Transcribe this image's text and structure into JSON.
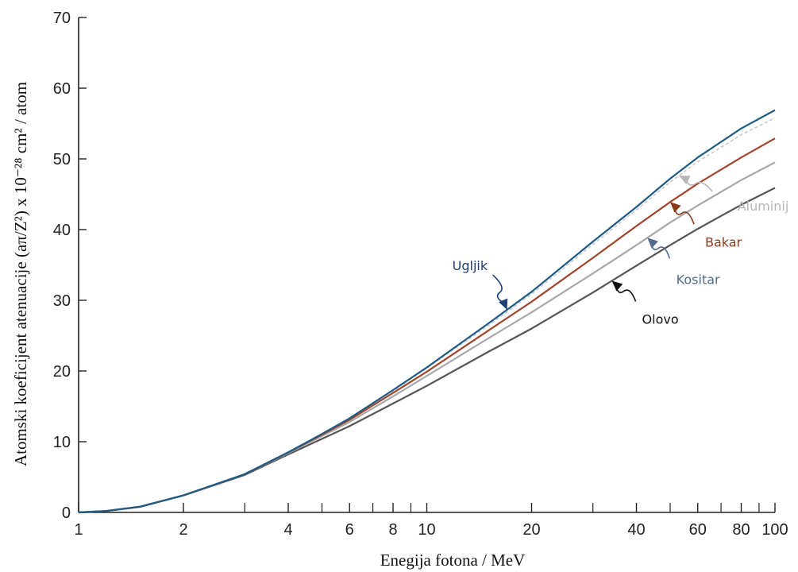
{
  "chart_data": {
    "type": "line",
    "xscale": "log",
    "xlim": [
      1,
      100
    ],
    "ylim": [
      0,
      70
    ],
    "xlabel": "Enegija fotona / MeV",
    "ylabel": "Atomski koeficijent atenuacije (aπ/Z²) x 10⁻²⁸ cm² / atom",
    "x_ticks": [
      1,
      2,
      4,
      6,
      8,
      10,
      20,
      40,
      60,
      80,
      100
    ],
    "x_tick_labels": [
      "1",
      "2",
      "4",
      "6",
      "8",
      "10",
      "20",
      "40",
      "60",
      "80",
      "100"
    ],
    "x_minor_ticks": [
      3,
      5,
      7,
      9,
      30,
      50,
      70,
      90
    ],
    "y_ticks": [
      0,
      10,
      20,
      30,
      40,
      50,
      60,
      70
    ],
    "y_tick_labels": [
      "0",
      "10",
      "20",
      "30",
      "40",
      "50",
      "60",
      "70"
    ],
    "grid": false,
    "series": [
      {
        "name": "Ugljik",
        "color": "#1d5b86",
        "x": [
          1,
          1.2,
          1.5,
          2,
          3,
          4,
          5,
          6,
          8,
          10,
          15,
          20,
          30,
          40,
          50,
          60,
          80,
          100
        ],
        "y": [
          0,
          0.2,
          0.8,
          2.4,
          5.4,
          8.5,
          11.1,
          13.3,
          17.3,
          20.5,
          26.7,
          31.2,
          38.3,
          43.2,
          47.2,
          50.2,
          54.3,
          56.9
        ]
      },
      {
        "name": "Aluminij",
        "color": "#c8c8c8",
        "dashed": true,
        "x": [
          1,
          1.2,
          1.5,
          2,
          3,
          4,
          5,
          6,
          8,
          10,
          15,
          20,
          30,
          40,
          50,
          60,
          80,
          100
        ],
        "y": [
          0,
          0.2,
          0.8,
          2.4,
          5.4,
          8.5,
          11.1,
          13.3,
          17.2,
          20.4,
          26.4,
          30.9,
          37.9,
          42.8,
          46.7,
          49.6,
          53.4,
          55.8
        ]
      },
      {
        "name": "Bakar",
        "color": "#a0452a",
        "x": [
          1,
          1.2,
          1.5,
          2,
          3,
          4,
          5,
          6,
          8,
          10,
          15,
          20,
          30,
          40,
          50,
          60,
          80,
          100
        ],
        "y": [
          0,
          0.2,
          0.8,
          2.4,
          5.4,
          8.5,
          11.0,
          13.1,
          16.9,
          19.9,
          25.7,
          29.8,
          36.0,
          40.5,
          43.9,
          46.5,
          50.2,
          52.9
        ]
      },
      {
        "name": "Kositar",
        "color": "#a8a8a8",
        "x": [
          1,
          1.2,
          1.5,
          2,
          3,
          4,
          5,
          6,
          8,
          10,
          15,
          20,
          30,
          40,
          50,
          60,
          80,
          100
        ],
        "y": [
          0,
          0.2,
          0.8,
          2.4,
          5.4,
          8.4,
          10.8,
          12.8,
          16.4,
          19.3,
          24.6,
          28.3,
          33.8,
          37.8,
          41.0,
          43.4,
          47.0,
          49.5
        ]
      },
      {
        "name": "Olovo",
        "color": "#555555",
        "x": [
          1,
          1.2,
          1.5,
          2,
          3,
          4,
          5,
          6,
          8,
          10,
          15,
          20,
          30,
          40,
          50,
          60,
          80,
          100
        ],
        "y": [
          0,
          0.2,
          0.8,
          2.4,
          5.3,
          8.2,
          10.4,
          12.2,
          15.4,
          17.9,
          22.7,
          26.0,
          31.1,
          34.9,
          37.8,
          40.1,
          43.5,
          45.9
        ]
      }
    ],
    "annotations": [
      {
        "text": "Ugljik",
        "color": "#1f3f77",
        "series": "Ugljik",
        "x_at": 17
      },
      {
        "text": "Aluminij",
        "color": "#b5b5b5",
        "series": "Aluminij",
        "x_at": 53
      },
      {
        "text": "Bakar",
        "color": "#8b3a1a",
        "series": "Bakar",
        "x_at": 50
      },
      {
        "text": "Kositar",
        "color": "#4f6b8c",
        "series": "Kositar",
        "x_at": 43
      },
      {
        "text": "Olovo",
        "color": "#111111",
        "series": "Olovo",
        "x_at": 34
      }
    ]
  }
}
